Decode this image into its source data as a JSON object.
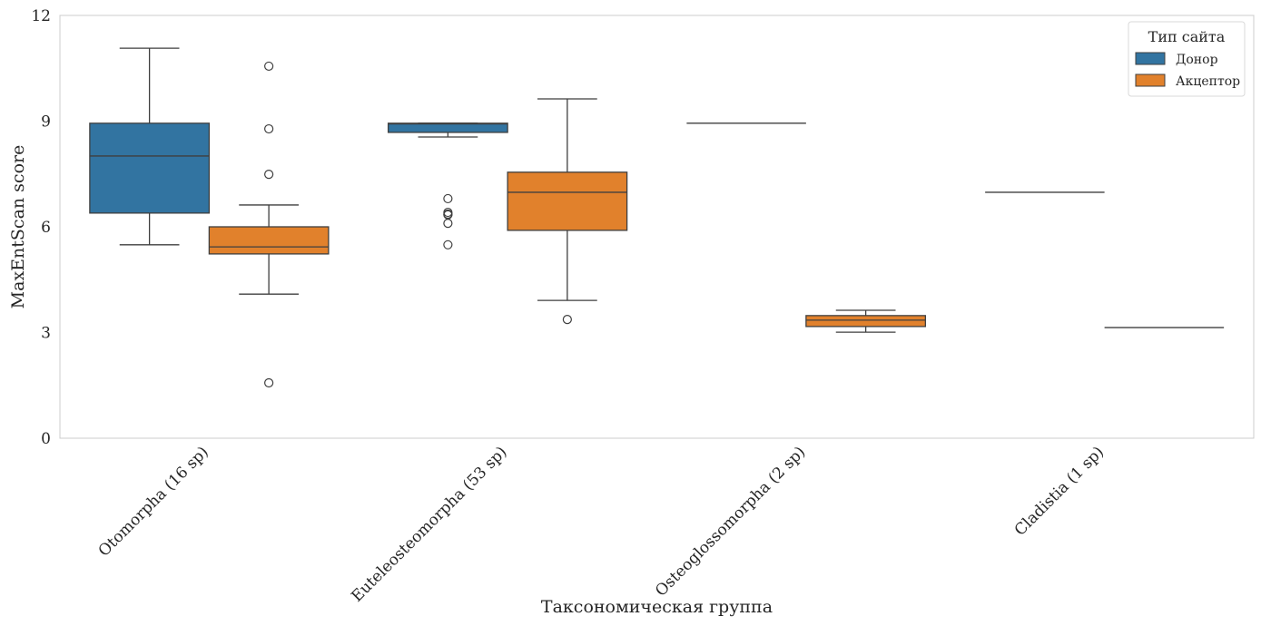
{
  "chart_data": {
    "type": "box",
    "title": "",
    "xlabel": "Таксономическая группа",
    "ylabel": "MaxEntScan score",
    "ylim": [
      0,
      12
    ],
    "yticks": [
      0,
      3,
      6,
      9,
      12
    ],
    "ytick_labels": [
      "0",
      "3",
      "6",
      "9",
      "12"
    ],
    "grid": false,
    "categories": [
      "Otomorpha (16 sp)",
      "Euteleosteomorpha (53 sp)",
      "Osteoglossomorpha (2 sp)",
      "Cladistia (1 sp)"
    ],
    "legend": {
      "title": "Тип сайта",
      "position": "top-right"
    },
    "series": [
      {
        "name": "Донор",
        "color": "#3274a1",
        "boxes": [
          {
            "whisker_low": 5.49,
            "q1": 6.39,
            "median": 8.01,
            "q3": 8.94,
            "whisker_high": 11.07,
            "outliers": []
          },
          {
            "whisker_low": 8.55,
            "q1": 8.68,
            "median": 8.92,
            "q3": 8.94,
            "whisker_high": 8.94,
            "outliers": [
              6.8,
              6.41,
              6.36,
              6.34,
              6.1,
              5.49
            ]
          },
          {
            "whisker_low": 8.94,
            "q1": 8.94,
            "median": 8.94,
            "q3": 8.94,
            "whisker_high": 8.94,
            "outliers": []
          },
          {
            "whisker_low": 6.98,
            "q1": 6.98,
            "median": 6.98,
            "q3": 6.98,
            "whisker_high": 6.98,
            "outliers": []
          }
        ]
      },
      {
        "name": "Акцептор",
        "color": "#e1812c",
        "boxes": [
          {
            "whisker_low": 4.09,
            "q1": 5.23,
            "median": 5.43,
            "q3": 6.0,
            "whisker_high": 6.62,
            "outliers": [
              10.56,
              8.78,
              7.49,
              1.57
            ]
          },
          {
            "whisker_low": 3.91,
            "q1": 5.9,
            "median": 6.98,
            "q3": 7.55,
            "whisker_high": 9.63,
            "outliers": [
              3.37
            ]
          },
          {
            "whisker_low": 3.01,
            "q1": 3.17,
            "median": 3.35,
            "q3": 3.48,
            "whisker_high": 3.63,
            "outliers": []
          },
          {
            "whisker_low": 3.14,
            "q1": 3.14,
            "median": 3.14,
            "q3": 3.14,
            "whisker_high": 3.14,
            "outliers": []
          }
        ]
      }
    ]
  }
}
